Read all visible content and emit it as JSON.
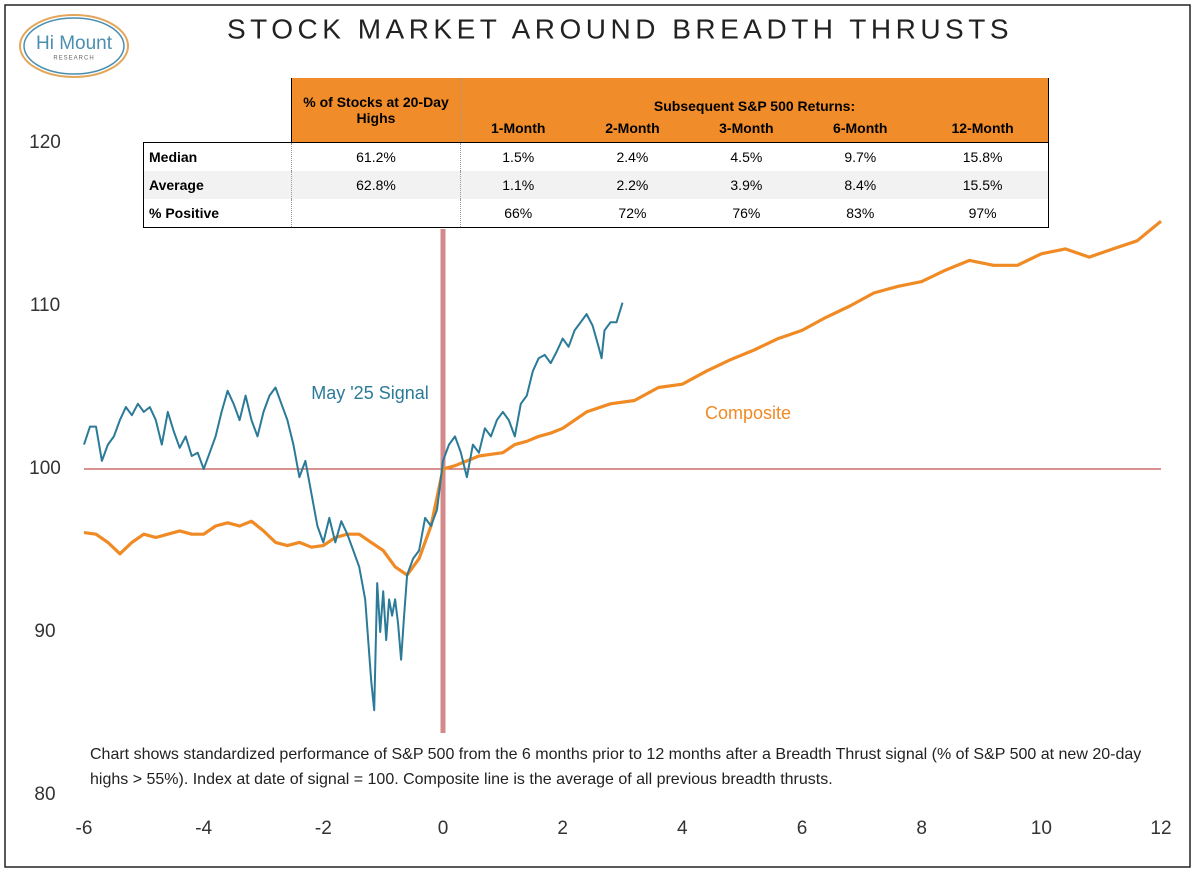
{
  "logo": {
    "name": "Hi Mount",
    "tagline": "RESEARCH"
  },
  "chart_data": {
    "type": "line",
    "title": "STOCK MARKET AROUND BREADTH THRUSTS",
    "note": "Chart shows standardized performance of S&P 500 from the 6 months prior to 12 months after a Breadth Thrust signal (% of S&P 500 at new 20-day highs > 55%). Index at date of signal = 100. Composite line is the average of all previous breadth thrusts.",
    "xlim": [
      -6,
      12
    ],
    "xticks": [
      -6,
      -4,
      -2,
      0,
      2,
      4,
      6,
      8,
      10,
      12
    ],
    "ylim": [
      80,
      120
    ],
    "yticks": [
      80,
      90,
      100,
      110,
      120
    ],
    "hline": 100,
    "vline": 0,
    "grid": false,
    "series": [
      {
        "name": "May '25 Signal",
        "color": "#2b7a98",
        "x": [
          -6,
          -5.9,
          -5.8,
          -5.7,
          -5.6,
          -5.5,
          -5.4,
          -5.3,
          -5.2,
          -5.1,
          -5.0,
          -4.9,
          -4.8,
          -4.7,
          -4.6,
          -4.5,
          -4.4,
          -4.3,
          -4.2,
          -4.1,
          -4.0,
          -3.9,
          -3.8,
          -3.7,
          -3.6,
          -3.5,
          -3.4,
          -3.3,
          -3.2,
          -3.1,
          -3.0,
          -2.9,
          -2.8,
          -2.7,
          -2.6,
          -2.5,
          -2.4,
          -2.3,
          -2.2,
          -2.1,
          -2.0,
          -1.9,
          -1.8,
          -1.7,
          -1.6,
          -1.5,
          -1.4,
          -1.3,
          -1.2,
          -1.15,
          -1.1,
          -1.05,
          -1.0,
          -0.95,
          -0.9,
          -0.85,
          -0.8,
          -0.75,
          -0.7,
          -0.65,
          -0.6,
          -0.5,
          -0.4,
          -0.3,
          -0.2,
          -0.1,
          0,
          0.1,
          0.2,
          0.3,
          0.4,
          0.5,
          0.6,
          0.7,
          0.8,
          0.9,
          1.0,
          1.1,
          1.2,
          1.3,
          1.4,
          1.5,
          1.6,
          1.7,
          1.8,
          1.9,
          2.0,
          2.1,
          2.2,
          2.3,
          2.4,
          2.5,
          2.6,
          2.65,
          2.7,
          2.8,
          2.9,
          3.0
        ],
        "values": [
          101.5,
          102.6,
          102.6,
          100.5,
          101.5,
          102.0,
          103.0,
          103.8,
          103.3,
          104.0,
          103.5,
          103.8,
          103.0,
          101.5,
          103.5,
          102.3,
          101.3,
          102.0,
          100.8,
          101.0,
          100.0,
          101.0,
          102.0,
          103.5,
          104.8,
          104.0,
          103.0,
          104.5,
          103.0,
          102.0,
          103.5,
          104.5,
          105.0,
          104.0,
          103.0,
          101.5,
          99.5,
          100.5,
          98.5,
          96.5,
          95.5,
          97.0,
          95.5,
          96.8,
          96.0,
          95.0,
          94.0,
          92.0,
          87.0,
          85.2,
          93.0,
          90.0,
          92.5,
          89.5,
          92.0,
          91.0,
          92.0,
          90.5,
          88.3,
          91.0,
          93.5,
          94.5,
          95.0,
          97.0,
          96.5,
          97.5,
          100.5,
          101.5,
          102.0,
          101.0,
          99.5,
          101.5,
          101.0,
          102.5,
          102.0,
          103.0,
          103.5,
          103.0,
          102.0,
          104.0,
          104.5,
          106.0,
          106.8,
          107.0,
          106.5,
          107.2,
          108.0,
          107.5,
          108.5,
          109.0,
          109.5,
          108.8,
          107.5,
          106.8,
          108.5,
          109.0,
          109.0,
          110.2
        ]
      },
      {
        "name": "Composite",
        "color": "#f08a24",
        "x": [
          -6,
          -5.8,
          -5.6,
          -5.4,
          -5.2,
          -5.0,
          -4.8,
          -4.6,
          -4.4,
          -4.2,
          -4.0,
          -3.8,
          -3.6,
          -3.4,
          -3.2,
          -3.0,
          -2.8,
          -2.6,
          -2.4,
          -2.2,
          -2.0,
          -1.8,
          -1.6,
          -1.4,
          -1.2,
          -1.0,
          -0.8,
          -0.6,
          -0.4,
          -0.2,
          0,
          0.2,
          0.4,
          0.6,
          0.8,
          1.0,
          1.2,
          1.4,
          1.6,
          1.8,
          2.0,
          2.4,
          2.8,
          3.2,
          3.6,
          4.0,
          4.4,
          4.8,
          5.2,
          5.6,
          6.0,
          6.4,
          6.8,
          7.2,
          7.6,
          8.0,
          8.4,
          8.8,
          9.2,
          9.6,
          10.0,
          10.4,
          10.8,
          11.2,
          11.6,
          12.0
        ],
        "values": [
          96.1,
          96.0,
          95.5,
          94.8,
          95.5,
          96.0,
          95.8,
          96.0,
          96.2,
          96.0,
          96.0,
          96.5,
          96.7,
          96.5,
          96.8,
          96.2,
          95.5,
          95.3,
          95.5,
          95.2,
          95.3,
          95.8,
          96.0,
          96.0,
          95.5,
          95.0,
          94.0,
          93.5,
          94.5,
          96.5,
          100.0,
          100.2,
          100.5,
          100.8,
          100.9,
          101.0,
          101.5,
          101.7,
          102.0,
          102.2,
          102.5,
          103.5,
          104.0,
          104.2,
          105.0,
          105.2,
          106.0,
          106.7,
          107.3,
          108.0,
          108.5,
          109.3,
          110.0,
          110.8,
          111.2,
          111.5,
          112.2,
          112.8,
          112.5,
          112.5,
          113.2,
          113.5,
          113.0,
          113.5,
          114.0,
          115.2
        ]
      }
    ]
  },
  "table": {
    "header": [
      "% of Stocks at 20-Day Highs",
      "1-Month",
      "2-Month",
      "3-Month",
      "6-Month",
      "12-Month"
    ],
    "group_header": "Subsequent S&P 500 Returns:",
    "rows": [
      [
        "Median",
        "61.2%",
        "1.5%",
        "2.4%",
        "4.5%",
        "9.7%",
        "15.8%"
      ],
      [
        "Average",
        "62.8%",
        "1.1%",
        "2.2%",
        "3.9%",
        "8.4%",
        "15.5%"
      ],
      [
        "% Positive",
        null,
        "66%",
        "72%",
        "76%",
        "83%",
        "97%"
      ]
    ]
  }
}
